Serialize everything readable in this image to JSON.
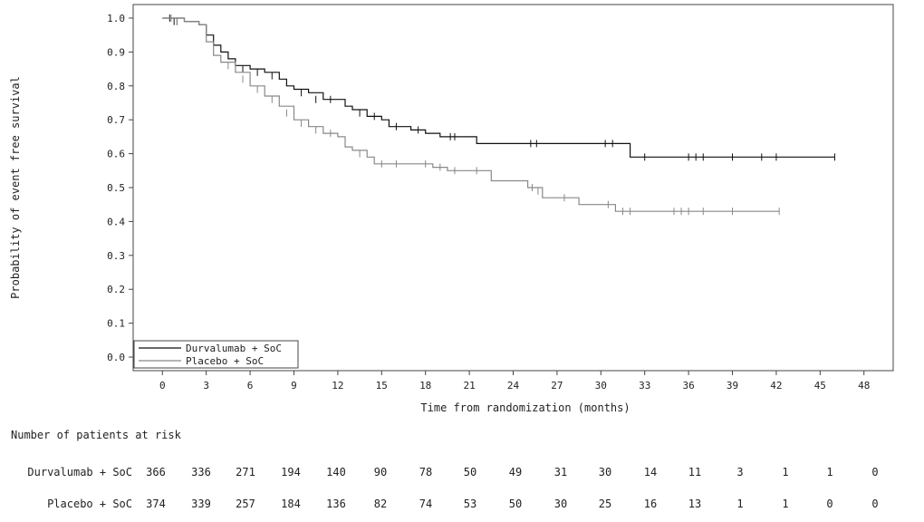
{
  "chart_data": {
    "type": "line",
    "subtype": "kaplan-meier",
    "title": "",
    "xlabel": "Time from randomization (months)",
    "ylabel": "Probability of event free survival",
    "xlim": [
      -2,
      50
    ],
    "ylim": [
      -0.04,
      1.04
    ],
    "xticks": [
      0,
      3,
      6,
      9,
      12,
      15,
      18,
      21,
      24,
      27,
      30,
      33,
      36,
      39,
      42,
      45,
      48
    ],
    "yticks": [
      0.0,
      0.1,
      0.2,
      0.3,
      0.4,
      0.5,
      0.6,
      0.7,
      0.8,
      0.9,
      1.0
    ],
    "ytick_labels": [
      "0.0",
      "0.1",
      "0.2",
      "0.3",
      "0.4",
      "0.5",
      "0.6",
      "0.7",
      "0.8",
      "0.9",
      "1.0"
    ],
    "legend_position": "bottom-left",
    "series": [
      {
        "name": "Durvalumab + SoC",
        "color": "#111111",
        "points": [
          [
            0,
            1.0
          ],
          [
            1.5,
            0.99
          ],
          [
            2.5,
            0.98
          ],
          [
            3,
            0.95
          ],
          [
            3.5,
            0.92
          ],
          [
            4,
            0.9
          ],
          [
            4.5,
            0.88
          ],
          [
            5,
            0.86
          ],
          [
            6,
            0.85
          ],
          [
            7,
            0.84
          ],
          [
            8,
            0.82
          ],
          [
            8.5,
            0.8
          ],
          [
            9,
            0.79
          ],
          [
            10,
            0.78
          ],
          [
            11,
            0.76
          ],
          [
            12,
            0.76
          ],
          [
            12.5,
            0.74
          ],
          [
            13,
            0.73
          ],
          [
            14,
            0.71
          ],
          [
            15,
            0.7
          ],
          [
            15.5,
            0.68
          ],
          [
            17,
            0.67
          ],
          [
            18,
            0.66
          ],
          [
            19,
            0.65
          ],
          [
            20,
            0.65
          ],
          [
            21.5,
            0.63
          ],
          [
            25,
            0.63
          ],
          [
            28,
            0.63
          ],
          [
            30,
            0.63
          ],
          [
            31,
            0.63
          ],
          [
            32,
            0.59
          ],
          [
            35,
            0.59
          ],
          [
            38,
            0.59
          ],
          [
            42,
            0.59
          ],
          [
            46,
            0.59
          ]
        ],
        "censored": [
          [
            0.5,
            1.0
          ],
          [
            0.8,
            0.99
          ],
          [
            1,
            0.99
          ],
          [
            5.5,
            0.85
          ],
          [
            6.5,
            0.84
          ],
          [
            7.5,
            0.83
          ],
          [
            9.5,
            0.78
          ],
          [
            10.5,
            0.76
          ],
          [
            11.5,
            0.76
          ],
          [
            13.5,
            0.72
          ],
          [
            14.5,
            0.71
          ],
          [
            16,
            0.68
          ],
          [
            17.5,
            0.67
          ],
          [
            19.7,
            0.65
          ],
          [
            20,
            0.65
          ],
          [
            25.2,
            0.63
          ],
          [
            25.6,
            0.63
          ],
          [
            30.3,
            0.63
          ],
          [
            30.8,
            0.63
          ],
          [
            33,
            0.59
          ],
          [
            36,
            0.59
          ],
          [
            36.5,
            0.59
          ],
          [
            37,
            0.59
          ],
          [
            39,
            0.59
          ],
          [
            41,
            0.59
          ],
          [
            42,
            0.59
          ],
          [
            46,
            0.59
          ]
        ]
      },
      {
        "name": "Placebo + SoC",
        "color": "#888888",
        "points": [
          [
            0,
            1.0
          ],
          [
            1.5,
            0.99
          ],
          [
            2.5,
            0.98
          ],
          [
            3,
            0.93
          ],
          [
            3.5,
            0.89
          ],
          [
            4,
            0.87
          ],
          [
            5,
            0.84
          ],
          [
            6,
            0.8
          ],
          [
            7,
            0.77
          ],
          [
            8,
            0.74
          ],
          [
            9,
            0.7
          ],
          [
            10,
            0.68
          ],
          [
            11,
            0.66
          ],
          [
            12,
            0.65
          ],
          [
            12.5,
            0.62
          ],
          [
            13,
            0.61
          ],
          [
            14,
            0.59
          ],
          [
            14.5,
            0.57
          ],
          [
            17,
            0.57
          ],
          [
            18.5,
            0.56
          ],
          [
            19.5,
            0.55
          ],
          [
            21,
            0.55
          ],
          [
            22.5,
            0.52
          ],
          [
            24,
            0.52
          ],
          [
            25,
            0.5
          ],
          [
            26,
            0.47
          ],
          [
            27,
            0.47
          ],
          [
            28.5,
            0.45
          ],
          [
            30,
            0.45
          ],
          [
            31,
            0.43
          ],
          [
            33,
            0.43
          ],
          [
            36,
            0.43
          ],
          [
            39,
            0.43
          ],
          [
            42.2,
            0.43
          ]
        ],
        "censored": [
          [
            0.6,
            1.0
          ],
          [
            1,
            0.99
          ],
          [
            4.5,
            0.86
          ],
          [
            5.5,
            0.82
          ],
          [
            6.5,
            0.79
          ],
          [
            7.5,
            0.76
          ],
          [
            8.5,
            0.72
          ],
          [
            9.5,
            0.69
          ],
          [
            10.5,
            0.67
          ],
          [
            11.5,
            0.66
          ],
          [
            13.5,
            0.6
          ],
          [
            15,
            0.57
          ],
          [
            16,
            0.57
          ],
          [
            18,
            0.57
          ],
          [
            19,
            0.56
          ],
          [
            20,
            0.55
          ],
          [
            21.5,
            0.55
          ],
          [
            25.3,
            0.5
          ],
          [
            25.7,
            0.49
          ],
          [
            27.5,
            0.47
          ],
          [
            30.5,
            0.45
          ],
          [
            31.5,
            0.43
          ],
          [
            32,
            0.43
          ],
          [
            35,
            0.43
          ],
          [
            35.5,
            0.43
          ],
          [
            36,
            0.43
          ],
          [
            37,
            0.43
          ],
          [
            39,
            0.43
          ],
          [
            42.2,
            0.43
          ]
        ]
      }
    ]
  },
  "risk_table": {
    "title": "Number of patients at risk",
    "timepoints": [
      0,
      3,
      6,
      9,
      12,
      15,
      18,
      21,
      24,
      27,
      30,
      33,
      36,
      39,
      42,
      45,
      48
    ],
    "rows": [
      {
        "label": "Durvalumab + SoC",
        "values": [
          "366",
          "336",
          "271",
          "194",
          "140",
          "90",
          "78",
          "50",
          "49",
          "31",
          "30",
          "14",
          "11",
          "3",
          "1",
          "1",
          "0"
        ]
      },
      {
        "label": "Placebo + SoC",
        "values": [
          "374",
          "339",
          "257",
          "184",
          "136",
          "82",
          "74",
          "53",
          "50",
          "30",
          "25",
          "16",
          "13",
          "1",
          "1",
          "0",
          "0"
        ]
      }
    ]
  }
}
